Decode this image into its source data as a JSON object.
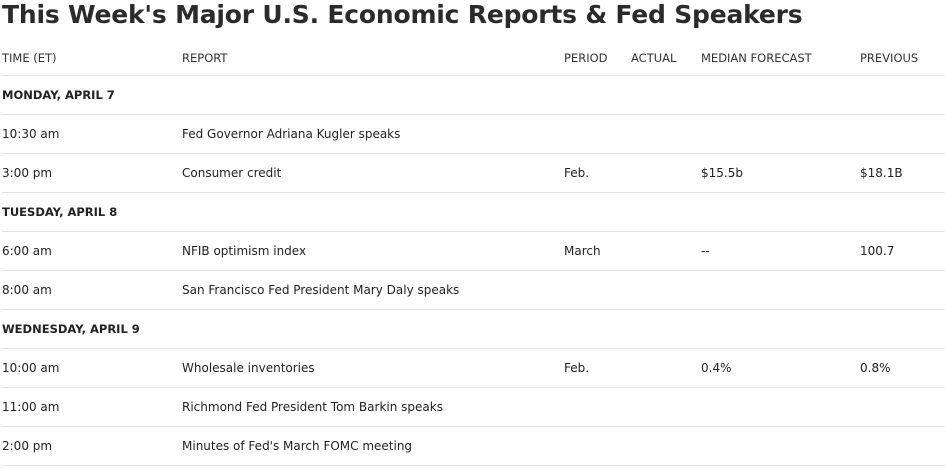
{
  "title": "This Week's Major U.S. Economic Reports & Fed Speakers",
  "columns": {
    "time": "TIME (ET)",
    "report": "REPORT",
    "period": "PERIOD",
    "actual": "ACTUAL",
    "forecast": "MEDIAN FORECAST",
    "previous": "PREVIOUS"
  },
  "days": [
    {
      "label": "MONDAY, APRIL 7",
      "rows": [
        {
          "time": "10:30 am",
          "report": "Fed Governor Adriana Kugler speaks",
          "period": "",
          "actual": "",
          "forecast": "",
          "previous": ""
        },
        {
          "time": "3:00 pm",
          "report": "Consumer credit",
          "period": "Feb.",
          "actual": "",
          "forecast": "$15.5b",
          "previous": "$18.1B"
        }
      ]
    },
    {
      "label": "TUESDAY, APRIL 8",
      "rows": [
        {
          "time": "6:00 am",
          "report": "NFIB optimism index",
          "period": "March",
          "actual": "",
          "forecast": "--",
          "previous": "100.7"
        },
        {
          "time": "8:00 am",
          "report": "San Francisco Fed President Mary Daly speaks",
          "period": "",
          "actual": "",
          "forecast": "",
          "previous": ""
        }
      ]
    },
    {
      "label": "WEDNESDAY, APRIL 9",
      "rows": [
        {
          "time": "10:00 am",
          "report": "Wholesale inventories",
          "period": "Feb.",
          "actual": "",
          "forecast": "0.4%",
          "previous": "0.8%"
        },
        {
          "time": "11:00 am",
          "report": "Richmond Fed President Tom Barkin speaks",
          "period": "",
          "actual": "",
          "forecast": "",
          "previous": ""
        },
        {
          "time": "2:00 pm",
          "report": "Minutes of Fed's March FOMC meeting",
          "period": "",
          "actual": "",
          "forecast": "",
          "previous": ""
        }
      ]
    }
  ]
}
